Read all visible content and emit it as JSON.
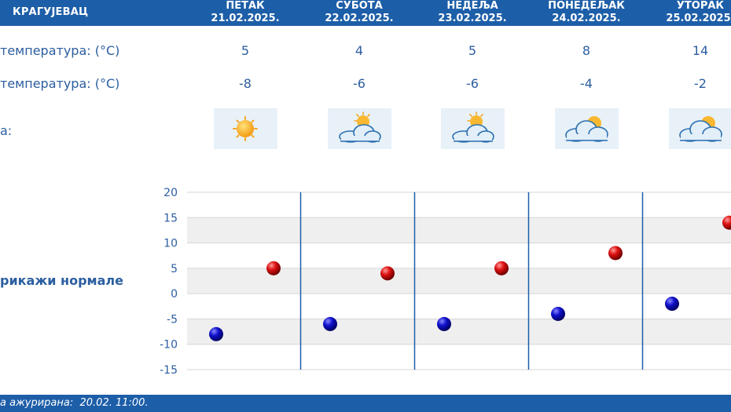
{
  "header": {
    "city": "КРАГУЈЕВАЦ"
  },
  "days": [
    {
      "name": "ПЕТАК",
      "date": "21.02.2025.",
      "max": "5",
      "min": "-8",
      "icon": "sun-icon"
    },
    {
      "name": "СУБОТА",
      "date": "22.02.2025.",
      "max": "4",
      "min": "-6",
      "icon": "partly-cloudy-icon"
    },
    {
      "name": "НЕДЕЉА",
      "date": "23.02.2025.",
      "max": "5",
      "min": "-6",
      "icon": "partly-cloudy-icon"
    },
    {
      "name": "ПОНЕДЕЉАК",
      "date": "24.02.2025.",
      "max": "8",
      "min": "-4",
      "icon": "cloudy-sun-icon"
    },
    {
      "name": "УТОРАК",
      "date": "25.02.2025.",
      "max": "14",
      "min": "-2",
      "icon": "cloudy-sun-icon"
    }
  ],
  "labels": {
    "max_temp": "температура: (°C)",
    "min_temp": "температура: (°C)",
    "weather": "а:",
    "show_normals": "рикажи нормале"
  },
  "footer": {
    "updated": "а ажурирана:  20.02. 11:00."
  },
  "colors": {
    "header": "#1d5ea8",
    "text": "#2b5ea0",
    "max_marker": "#cc0000",
    "min_marker": "#0000bb"
  },
  "chart_data": {
    "type": "scatter",
    "categories": [
      "21.02.2025.",
      "22.02.2025.",
      "23.02.2025.",
      "24.02.2025.",
      "25.02.2025."
    ],
    "series": [
      {
        "values": [
          5,
          4,
          5,
          8,
          14
        ]
      },
      {
        "values": [
          -8,
          -6,
          -6,
          -4,
          -2
        ]
      }
    ],
    "ylim": [
      -15,
      20
    ],
    "yticks": [
      20,
      15,
      10,
      5,
      0,
      -5,
      -10,
      -15
    ],
    "grid": true
  }
}
